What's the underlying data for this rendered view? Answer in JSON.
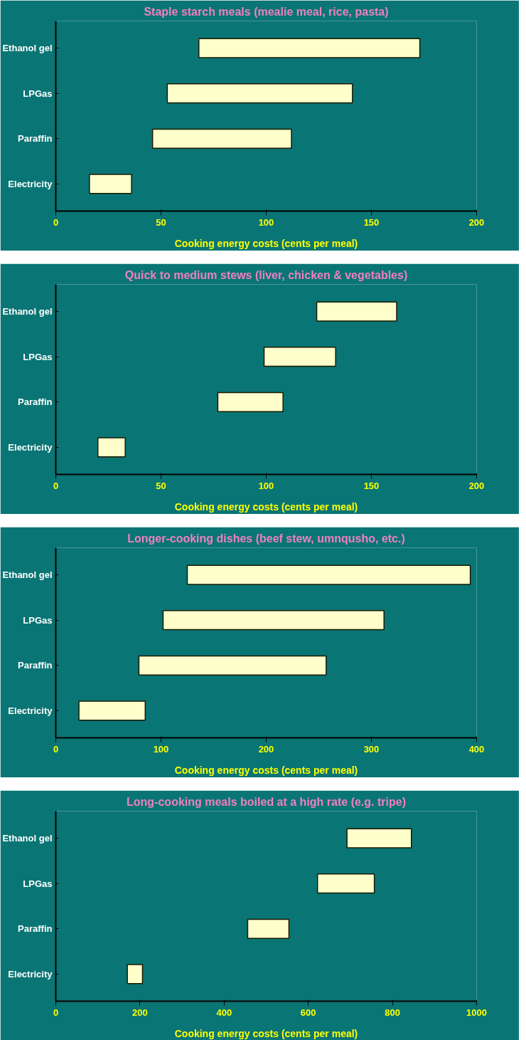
{
  "chart_data": [
    {
      "type": "bar",
      "orientation": "horizontal",
      "title": "Staple starch meals (mealie meal, rice, pasta)",
      "xlabel": "Cooking energy costs (cents per meal)",
      "categories": [
        "Ethanol gel",
        "LPGas",
        "Paraffin",
        "Electricity"
      ],
      "base": [
        68,
        53,
        46,
        16
      ],
      "values": [
        105,
        88,
        66,
        20
      ],
      "color": "#ffffcc",
      "xlim": [
        0,
        200
      ],
      "xticks": [
        0,
        50,
        100,
        150,
        200
      ],
      "grid": false,
      "legend": false
    },
    {
      "type": "bar",
      "orientation": "horizontal",
      "title": "Quick to medium stews (liver, chicken & vegetables)",
      "xlabel": "Cooking energy costs (cents per meal)",
      "categories": [
        "Ethanol gel",
        "LPGas",
        "Paraffin",
        "Electricity"
      ],
      "base": [
        124,
        99,
        77,
        20
      ],
      "values": [
        38,
        34,
        31,
        13
      ],
      "color": "#ffffcc",
      "xlim": [
        0,
        200
      ],
      "xticks": [
        0,
        50,
        100,
        150,
        200
      ],
      "grid": false,
      "legend": false
    },
    {
      "type": "bar",
      "orientation": "horizontal",
      "title": "Longer-cooking dishes (beef stew, umnqusho, etc.)",
      "xlabel": "Cooking energy costs (cents per meal)",
      "categories": [
        "Ethanol gel",
        "LPGas",
        "Paraffin",
        "Electricity"
      ],
      "base": [
        125,
        102,
        79,
        22
      ],
      "values": [
        269,
        210,
        178,
        63
      ],
      "color": "#ffffcc",
      "xlim": [
        0,
        400
      ],
      "xticks": [
        0,
        100,
        200,
        300,
        400
      ],
      "grid": false,
      "legend": false
    },
    {
      "type": "bar",
      "orientation": "horizontal",
      "title": "Long-cooking meals boiled at a high rate (e.g. tripe)",
      "xlabel": "Cooking energy costs (cents per meal)",
      "categories": [
        "Ethanol gel",
        "LPGas",
        "Paraffin",
        "Electricity"
      ],
      "base": [
        692,
        622,
        456,
        170
      ],
      "values": [
        153,
        135,
        98,
        36
      ],
      "color": "#ffffcc",
      "xlim": [
        0,
        1000
      ],
      "xticks": [
        0,
        200,
        400,
        600,
        800,
        1000
      ],
      "grid": false,
      "legend": false
    }
  ]
}
